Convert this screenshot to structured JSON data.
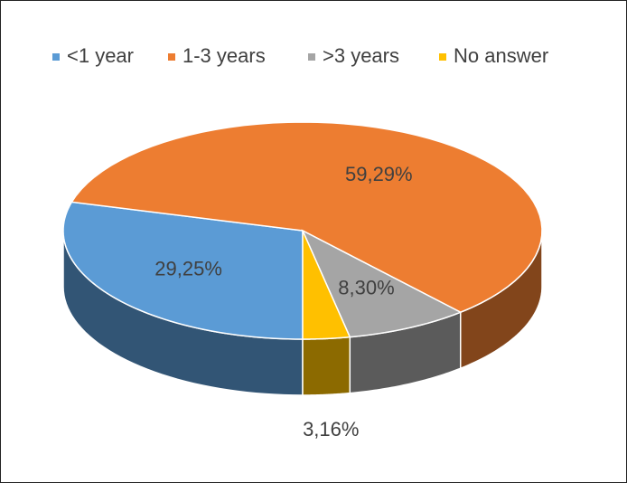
{
  "chart_data": {
    "type": "pie",
    "categories": [
      "<1 year",
      "1-3 years",
      ">3 years",
      "No answer"
    ],
    "values": [
      29.25,
      59.29,
      8.3,
      3.16
    ],
    "value_labels": [
      "29,25%",
      "59,29%",
      "8,30%",
      "3,16%"
    ],
    "colors": [
      "#5b9bd5",
      "#ed7d31",
      "#a5a5a5",
      "#ffc000"
    ],
    "legend": "top"
  }
}
